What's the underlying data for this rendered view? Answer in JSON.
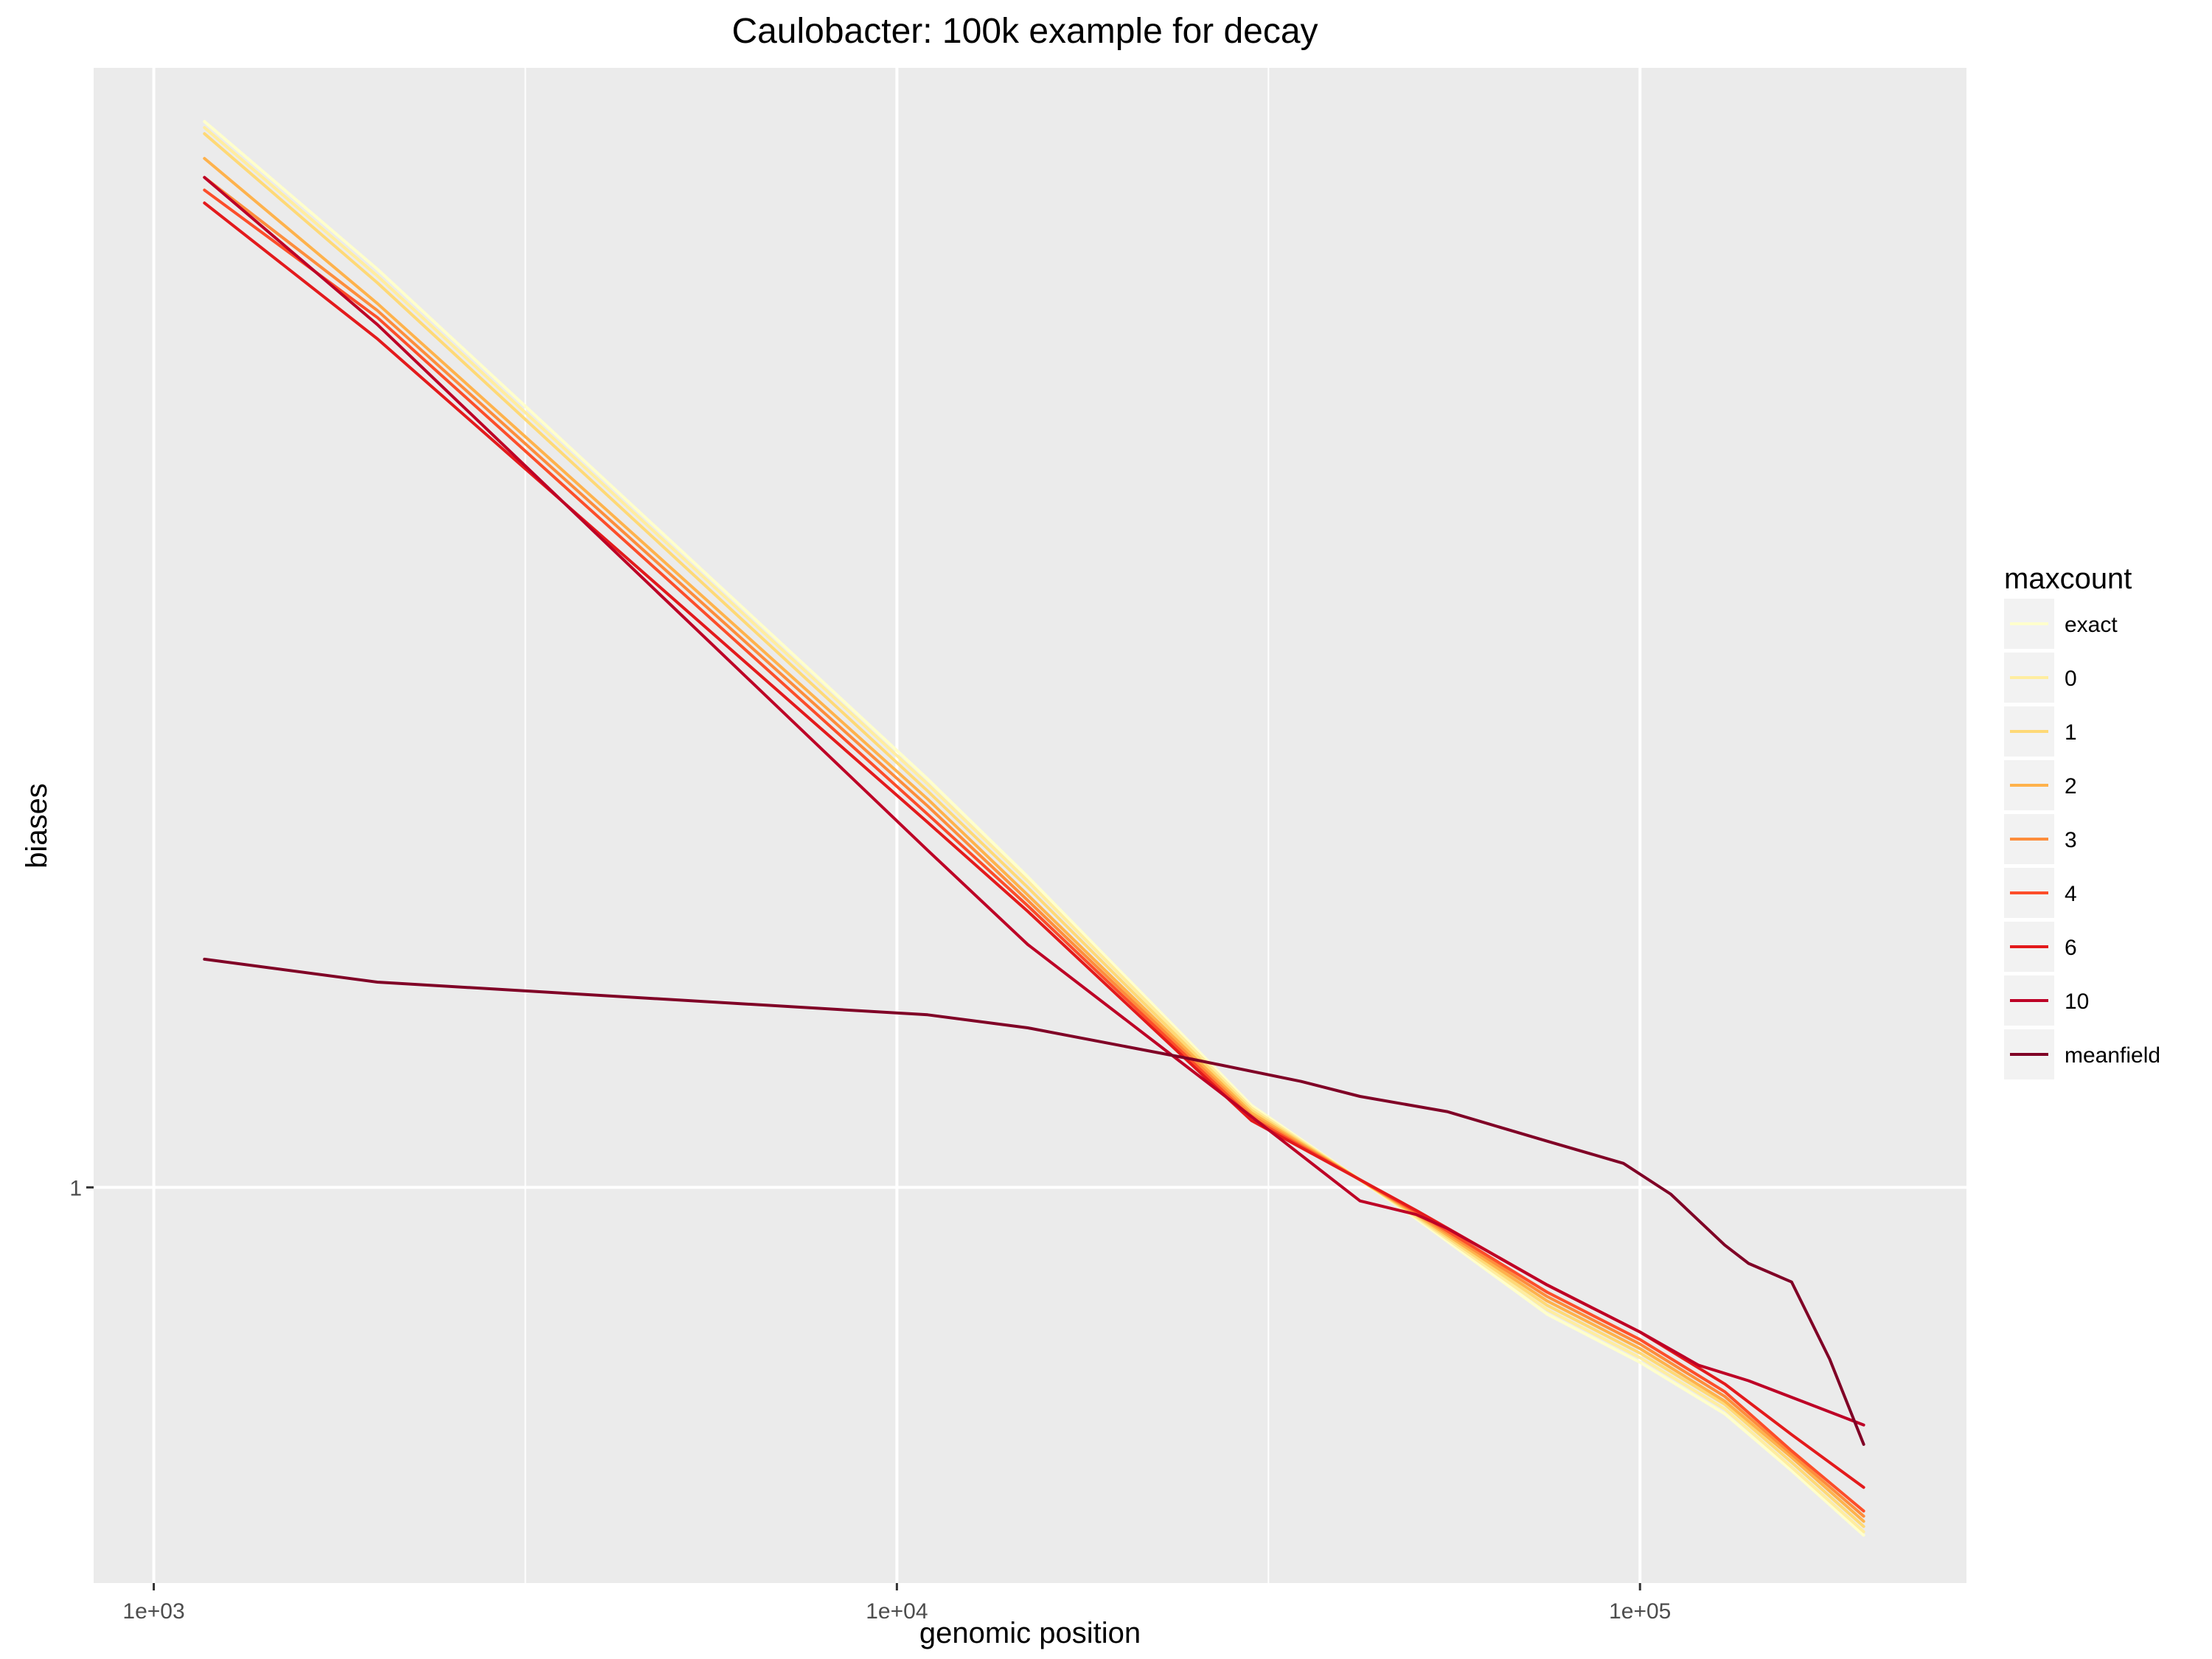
{
  "chart_data": {
    "type": "line",
    "title": "Caulobacter: 100k example for decay",
    "xlabel": "genomic position",
    "ylabel": "biases",
    "x_scale": "log10",
    "y_scale": "log10",
    "xlim": [
      830,
      275000
    ],
    "ylim": [
      0.745,
      2.3
    ],
    "x_ticks": [
      {
        "value": 1000,
        "label": "1e+03"
      },
      {
        "value": 10000,
        "label": "1e+04"
      },
      {
        "value": 100000,
        "label": "1e+05"
      }
    ],
    "x_minor_ticks": [
      3162,
      31623
    ],
    "y_ticks": [
      {
        "value": 1,
        "label": "1"
      }
    ],
    "grid": true,
    "legend": {
      "title": "maxcount",
      "position": "right"
    },
    "background": "#EBEBEB",
    "series": [
      {
        "name": "exact",
        "color": "#FFFFCC",
        "x": [
          1170,
          2000,
          11000,
          15000,
          30000,
          50000,
          75000,
          100000,
          130000,
          160000,
          200000
        ],
        "y": [
          2.21,
          1.98,
          1.355,
          1.26,
          1.063,
          0.977,
          0.91,
          0.878,
          0.845,
          0.81,
          0.772
        ]
      },
      {
        "name": "0",
        "color": "#FFEDA0",
        "x": [
          1170,
          2000,
          11000,
          15000,
          30000,
          50000,
          75000,
          100000,
          130000,
          160000,
          200000
        ],
        "y": [
          2.2,
          1.97,
          1.35,
          1.256,
          1.061,
          0.978,
          0.913,
          0.881,
          0.848,
          0.812,
          0.774
        ]
      },
      {
        "name": "1",
        "color": "#FED976",
        "x": [
          1170,
          2000,
          11000,
          15000,
          30000,
          50000,
          75000,
          100000,
          130000,
          160000,
          200000
        ],
        "y": [
          2.19,
          1.96,
          1.343,
          1.25,
          1.059,
          0.979,
          0.916,
          0.884,
          0.851,
          0.815,
          0.777
        ]
      },
      {
        "name": "2",
        "color": "#FEB24C",
        "x": [
          1170,
          2000,
          11000,
          15000,
          30000,
          50000,
          75000,
          100000,
          130000,
          160000,
          200000
        ],
        "y": [
          2.15,
          1.93,
          1.335,
          1.243,
          1.057,
          0.98,
          0.919,
          0.887,
          0.853,
          0.818,
          0.78
        ]
      },
      {
        "name": "3",
        "color": "#FD8D3C",
        "x": [
          1170,
          2000,
          11000,
          15000,
          30000,
          50000,
          75000,
          100000,
          130000,
          160000,
          200000
        ],
        "y": [
          2.12,
          1.92,
          1.328,
          1.238,
          1.055,
          0.981,
          0.922,
          0.89,
          0.856,
          0.82,
          0.783
        ]
      },
      {
        "name": "4",
        "color": "#FC4E2A",
        "x": [
          1170,
          2000,
          11000,
          15000,
          30000,
          50000,
          75000,
          100000,
          130000,
          160000,
          200000
        ],
        "y": [
          2.1,
          1.91,
          1.32,
          1.233,
          1.053,
          0.982,
          0.925,
          0.893,
          0.859,
          0.822,
          0.786
        ]
      },
      {
        "name": "6",
        "color": "#E31A1C",
        "x": [
          1170,
          2000,
          11000,
          15000,
          30000,
          50000,
          75000,
          100000,
          130000,
          160000,
          200000
        ],
        "y": [
          2.08,
          1.88,
          1.312,
          1.228,
          1.051,
          0.983,
          0.93,
          0.898,
          0.864,
          0.832,
          0.8
        ]
      },
      {
        "name": "10",
        "color": "#BD0026",
        "x": [
          1170,
          2000,
          11000,
          15000,
          27000,
          42000,
          50000,
          55000,
          75000,
          100000,
          120000,
          140000,
          200000
        ],
        "y": [
          2.12,
          1.9,
          1.285,
          1.198,
          1.075,
          0.99,
          0.98,
          0.97,
          0.93,
          0.898,
          0.876,
          0.866,
          0.838
        ]
      },
      {
        "name": "meanfield",
        "color": "#800026",
        "x": [
          1170,
          2000,
          11000,
          15000,
          25000,
          35000,
          42000,
          55000,
          75000,
          95000,
          110000,
          130000,
          140000,
          160000,
          180000,
          200000
        ],
        "y": [
          1.185,
          1.165,
          1.137,
          1.126,
          1.1,
          1.082,
          1.07,
          1.058,
          1.035,
          1.018,
          0.995,
          0.958,
          0.945,
          0.932,
          0.88,
          0.826
        ]
      }
    ]
  }
}
